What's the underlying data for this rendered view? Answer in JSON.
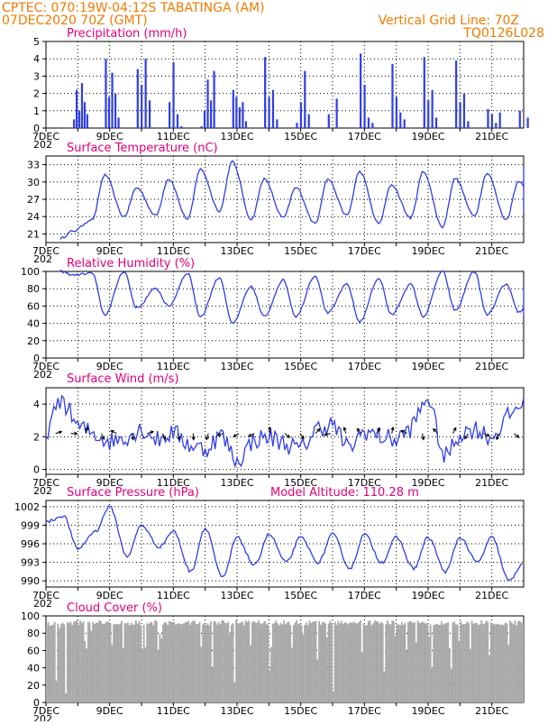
{
  "header": {
    "line1": "CPTEC:    070:19W-04:12S   TABATINGA (AM)",
    "line2": "07DEC2020 70Z (GMT)",
    "grid_note": "Vertical Grid Line: 70Z",
    "code": "TQ0126L028",
    "year_label": "202"
  },
  "x_days": [
    "7DEC",
    "9DEC",
    "11DEC",
    "13DEC",
    "15DEC",
    "17DEC",
    "19DEC",
    "21DEC"
  ],
  "colors": {
    "series": "#2f3ee6",
    "cloud": "#a8a8a8",
    "title": "#e0007a",
    "header": "#f07a00"
  },
  "chart_data": [
    {
      "type": "bar",
      "title": "Precipitation (mm/h)",
      "ylim": [
        0,
        5
      ],
      "yticks": [
        "0",
        "1",
        "2",
        "3",
        "4",
        "5"
      ],
      "x": [
        "8DEC",
        "8DEC",
        "8DEC",
        "8DEC",
        "8DEC",
        "8DEC",
        "9DEC",
        "9DEC",
        "9DEC",
        "9DEC",
        "9DEC",
        "10DEC",
        "10DEC",
        "10DEC",
        "10DEC",
        "11DEC",
        "11DEC",
        "11DEC",
        "11DEC",
        "12DEC",
        "12DEC",
        "12DEC",
        "12DEC",
        "12DEC",
        "13DEC",
        "13DEC",
        "13DEC",
        "13DEC",
        "13DEC",
        "14DEC",
        "14DEC",
        "14DEC",
        "14DEC",
        "15DEC",
        "15DEC",
        "15DEC",
        "15DEC",
        "16DEC",
        "16DEC",
        "17DEC",
        "17DEC",
        "17DEC",
        "17DEC",
        "18DEC",
        "18DEC",
        "18DEC",
        "18DEC",
        "19DEC",
        "19DEC",
        "19DEC",
        "19DEC",
        "20DEC",
        "20DEC",
        "20DEC",
        "20DEC",
        "21DEC",
        "21DEC",
        "21DEC",
        "21DEC",
        "22DEC",
        "22DEC"
      ],
      "values": [
        0.5,
        2.2,
        1.0,
        2.6,
        1.5,
        0.8,
        4.0,
        1.8,
        3.2,
        2.0,
        0.6,
        3.4,
        2.5,
        4.0,
        1.6,
        1.5,
        3.8,
        0.8,
        0.1,
        0.1,
        1.0,
        2.8,
        1.6,
        3.3,
        2.2,
        1.8,
        1.2,
        1.5,
        0.4,
        4.1,
        1.8,
        2.2,
        0.5,
        0.3,
        1.5,
        3.3,
        0.8,
        0.8,
        1.7,
        4.3,
        2.5,
        0.6,
        0.3,
        3.7,
        1.8,
        0.9,
        0.5,
        4.1,
        1.6,
        2.2,
        0.6,
        3.9,
        1.5,
        2.0,
        0.4,
        1.1,
        0.8,
        0.3,
        0.9,
        1.0,
        0.6
      ]
    },
    {
      "type": "line",
      "title": "Surface Temperature (nC)",
      "ylim": [
        19.5,
        34.5
      ],
      "yticks": [
        "21",
        "24",
        "27",
        "30",
        "33"
      ],
      "x": [
        "7DEC",
        "8DEC",
        "9DEC",
        "10DEC",
        "11DEC",
        "12DEC",
        "13DEC",
        "14DEC",
        "15DEC",
        "16DEC",
        "17DEC",
        "18DEC",
        "19DEC",
        "20DEC",
        "21DEC",
        "22DEC"
      ],
      "values_min": [
        20.2,
        23.5,
        24.0,
        24.2,
        23.6,
        25.0,
        23.5,
        23.8,
        22.8,
        24.2,
        22.8,
        23.8,
        22.2,
        24.1,
        23.5,
        24.8
      ],
      "values_max": [
        21.5,
        31.2,
        29.0,
        30.5,
        32.2,
        33.5,
        30.5,
        29.0,
        30.5,
        31.8,
        29.5,
        31.8,
        30.6,
        31.5,
        30.2,
        32.5
      ]
    },
    {
      "type": "line",
      "title": "Relative Humidity (%)",
      "ylim": [
        0,
        100
      ],
      "yticks": [
        "0",
        "20",
        "40",
        "60",
        "80",
        "100"
      ],
      "x": [
        "7DEC",
        "8DEC",
        "9DEC",
        "10DEC",
        "11DEC",
        "12DEC",
        "13DEC",
        "14DEC",
        "15DEC",
        "16DEC",
        "17DEC",
        "18DEC",
        "19DEC",
        "20DEC",
        "21DEC",
        "22DEC"
      ],
      "values_min": [
        96,
        50,
        58,
        60,
        48,
        40,
        48,
        48,
        52,
        42,
        50,
        48,
        55,
        50,
        53,
        45
      ],
      "values_max": [
        100,
        98,
        100,
        80,
        98,
        93,
        82,
        90,
        95,
        85,
        92,
        85,
        100,
        100,
        85,
        82
      ]
    },
    {
      "type": "line",
      "title": "Surface Wind (m/s)",
      "ylim": [
        -0.3,
        5.0
      ],
      "yticks": [
        "0",
        "2",
        "4"
      ],
      "x": [
        "7DEC",
        "7DEC",
        "8DEC",
        "8DEC",
        "9DEC",
        "9DEC",
        "10DEC",
        "10DEC",
        "11DEC",
        "11DEC",
        "12DEC",
        "12DEC",
        "13DEC",
        "13DEC",
        "14DEC",
        "14DEC",
        "15DEC",
        "15DEC",
        "16DEC",
        "16DEC",
        "17DEC",
        "17DEC",
        "18DEC",
        "18DEC",
        "19DEC",
        "19DEC",
        "20DEC",
        "20DEC",
        "21DEC",
        "21DEC",
        "22DEC"
      ],
      "values": [
        2.2,
        4.4,
        2.6,
        2.2,
        1.7,
        2.0,
        2.5,
        1.8,
        2.3,
        1.5,
        1.2,
        2.2,
        0.4,
        1.8,
        2.0,
        1.6,
        1.2,
        2.5,
        2.8,
        1.2,
        2.4,
        2.0,
        1.8,
        2.6,
        4.6,
        0.6,
        2.2,
        2.5,
        1.9,
        3.2,
        4.2
      ]
    },
    {
      "type": "line",
      "title": "Surface Pressure (hPa)",
      "annotation": "Model Altitude: 110.28 m",
      "ylim": [
        989,
        1003
      ],
      "yticks": [
        "990",
        "993",
        "996",
        "999",
        "1002"
      ],
      "x": [
        "7DEC",
        "7DEC",
        "8DEC",
        "8DEC",
        "9DEC",
        "9DEC",
        "10DEC",
        "10DEC",
        "11DEC",
        "11DEC",
        "12DEC",
        "12DEC",
        "13DEC",
        "13DEC",
        "14DEC",
        "14DEC",
        "15DEC",
        "15DEC",
        "16DEC",
        "16DEC",
        "17DEC",
        "17DEC",
        "18DEC",
        "18DEC",
        "19DEC",
        "19DEC",
        "20DEC",
        "20DEC",
        "21DEC",
        "21DEC",
        "22DEC"
      ],
      "values": [
        999.5,
        1000.5,
        995.2,
        998.0,
        1002.0,
        994.0,
        999.0,
        995.5,
        998.0,
        991.5,
        998.5,
        990.5,
        997.0,
        992.5,
        997.5,
        993.0,
        997.0,
        993.0,
        997.5,
        992.0,
        997.5,
        993.0,
        997.0,
        992.0,
        997.0,
        991.5,
        997.0,
        993.0,
        997.0,
        990.0,
        993.0
      ]
    },
    {
      "type": "area",
      "title": "Cloud Cover (%)",
      "ylim": [
        0,
        100
      ],
      "yticks": [
        "0",
        "20",
        "40",
        "60",
        "80",
        "100"
      ],
      "typical_value": 95
    }
  ]
}
